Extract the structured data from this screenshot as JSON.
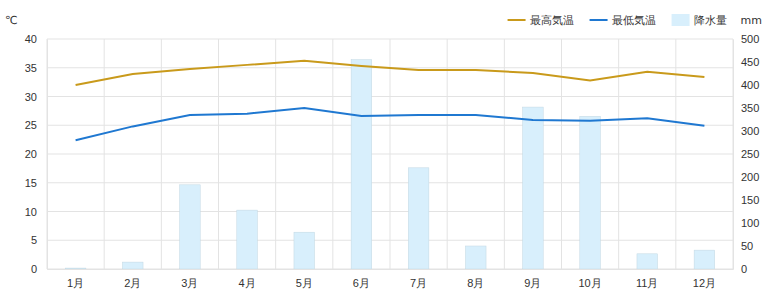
{
  "chart_data": {
    "type": "bar",
    "y_label": "℃",
    "y2_label": "mm",
    "categories": [
      "1月",
      "2月",
      "3月",
      "4月",
      "5月",
      "6月",
      "7月",
      "8月",
      "9月",
      "10月",
      "11月",
      "12月"
    ],
    "series": [
      {
        "name": "最高気温",
        "type": "line",
        "color": "#c99a1b",
        "values": [
          32.0,
          33.9,
          34.8,
          35.5,
          36.2,
          35.3,
          34.6,
          34.6,
          34.1,
          32.8,
          34.3,
          33.4
        ]
      },
      {
        "name": "最低気温",
        "type": "line",
        "color": "#1f78d1",
        "values": [
          22.4,
          24.8,
          26.8,
          27.0,
          28.0,
          26.6,
          26.8,
          26.8,
          25.9,
          25.8,
          26.2,
          24.9
        ]
      },
      {
        "name": "降水量",
        "type": "bar",
        "axis": "y2",
        "color": "#d8effc",
        "values": [
          2,
          15,
          183,
          128,
          80,
          455,
          220,
          50,
          352,
          332,
          33,
          41
        ]
      }
    ],
    "ylim": [
      0,
      40
    ],
    "yticks": [
      0,
      5,
      10,
      15,
      20,
      25,
      30,
      35,
      40
    ],
    "y2lim": [
      0,
      500
    ],
    "y2ticks": [
      0,
      50,
      100,
      150,
      200,
      250,
      300,
      350,
      400,
      450,
      500
    ],
    "grid": true,
    "legend": "top-right"
  }
}
